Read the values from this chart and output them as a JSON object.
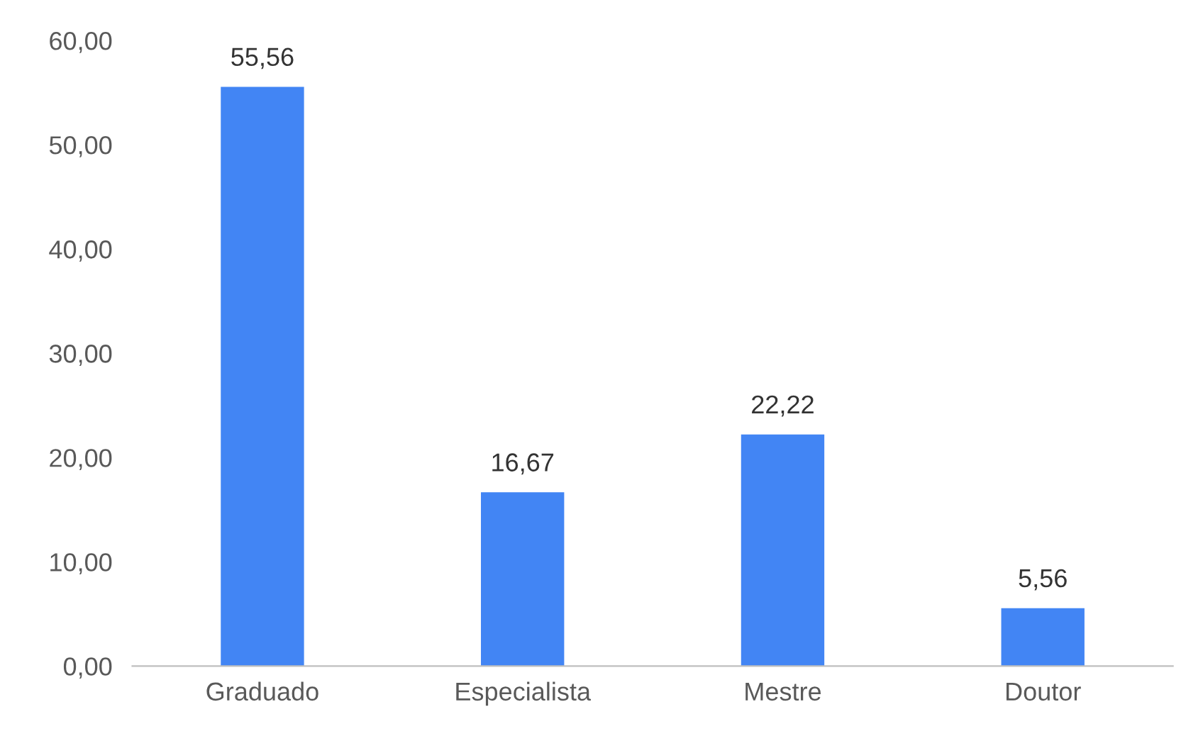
{
  "chart_data": {
    "type": "bar",
    "categories": [
      "Graduado",
      "Especialista",
      "Mestre",
      "Doutor"
    ],
    "values": [
      55.56,
      16.67,
      22.22,
      5.56
    ],
    "value_labels": [
      "55,56",
      "16,67",
      "22,22",
      "5,56"
    ],
    "color": "#4285f4",
    "ylim": [
      0,
      60
    ],
    "yticks": [
      {
        "value": 0,
        "label": "0,00"
      },
      {
        "value": 10,
        "label": "10,00"
      },
      {
        "value": 20,
        "label": "20,00"
      },
      {
        "value": 30,
        "label": "30,00"
      },
      {
        "value": 40,
        "label": "40,00"
      },
      {
        "value": 50,
        "label": "50,00"
      },
      {
        "value": 60,
        "label": "60,00"
      }
    ],
    "grid": false,
    "legend": false
  }
}
